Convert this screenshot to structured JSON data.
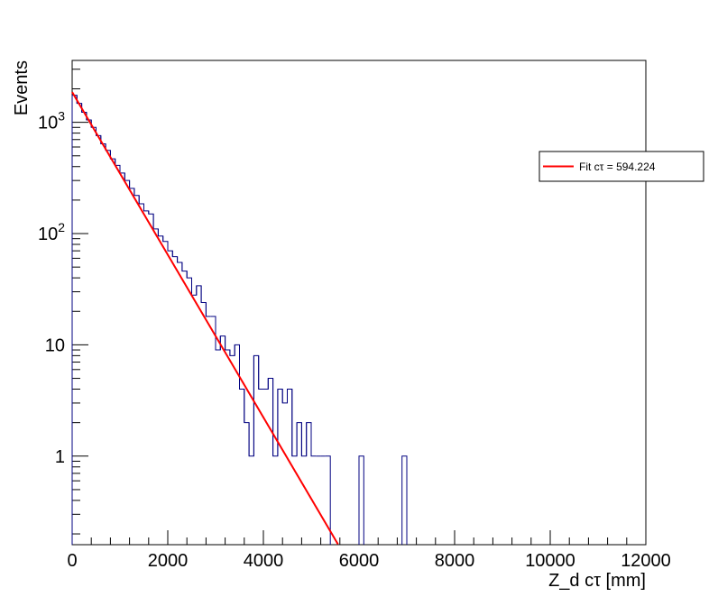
{
  "chart_data": {
    "type": "histogram",
    "xlabel": "Z_d cτ [mm]",
    "ylabel": "Events",
    "xlim": [
      0,
      12000
    ],
    "ylim": [
      0.16,
      3600
    ],
    "yscale": "log",
    "grid": false,
    "legend_placement": "right",
    "x_ticks": [
      0,
      2000,
      4000,
      6000,
      8000,
      10000,
      12000
    ],
    "x_tick_labels": [
      "0",
      "2000",
      "4000",
      "6000",
      "8000",
      "10000",
      "12000"
    ],
    "y_ticks": [
      1,
      10,
      100,
      1000
    ],
    "y_tick_labels": [
      "1",
      "10",
      "10^2",
      "10^3"
    ],
    "histogram": {
      "color": "#000080",
      "bin_width": 100,
      "bin_edges_start": 0,
      "counts": [
        1750,
        1480,
        1230,
        1050,
        900,
        760,
        640,
        560,
        470,
        410,
        350,
        300,
        255,
        220,
        185,
        160,
        150,
        110,
        95,
        85,
        70,
        62,
        55,
        46,
        40,
        28,
        34,
        24,
        18,
        18,
        9,
        12,
        9,
        8,
        10,
        4,
        2,
        1,
        8,
        4,
        4,
        5,
        1,
        4,
        3,
        4,
        1,
        2,
        1,
        2,
        1,
        1,
        1,
        1,
        0,
        0,
        0,
        0,
        0,
        0,
        1,
        0,
        0,
        0,
        0,
        0,
        0,
        0,
        0,
        1
      ]
    },
    "fit": {
      "name": "Fit cτ = 594.224",
      "color": "#ff0000",
      "normalization": 1870,
      "ctau": 594.224,
      "x_range": [
        0,
        5620
      ]
    }
  }
}
